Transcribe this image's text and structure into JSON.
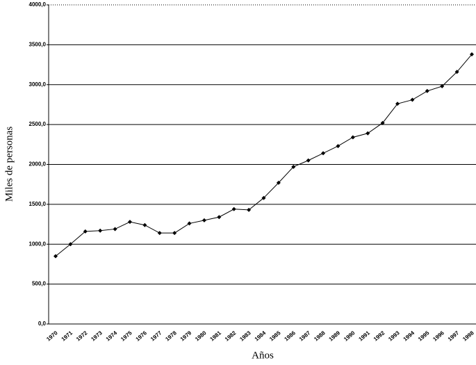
{
  "chart_data": {
    "type": "line",
    "x_label": "Años",
    "y_label": "Miles de personas",
    "categories": [
      "1970",
      "1971",
      "1972",
      "1973",
      "1974",
      "1975",
      "1976",
      "1977",
      "1978",
      "1979",
      "1980",
      "1981",
      "1982",
      "1983",
      "1984",
      "1985",
      "1986",
      "1987",
      "1988",
      "1989",
      "1990",
      "1991",
      "1992",
      "1993",
      "1994",
      "1995",
      "1996",
      "1997",
      "1998"
    ],
    "values": [
      850,
      1000,
      1160,
      1170,
      1190,
      1280,
      1240,
      1140,
      1140,
      1260,
      1300,
      1340,
      1440,
      1430,
      1580,
      1770,
      1970,
      2050,
      2140,
      2230,
      2340,
      2390,
      2520,
      2760,
      2810,
      2920,
      2980,
      3160,
      3380
    ],
    "color": "#000000",
    "ylim": [
      0,
      4000
    ],
    "yticks": [
      {
        "value": 0,
        "label": "0,0"
      },
      {
        "value": 500,
        "label": "500,0"
      },
      {
        "value": 1000,
        "label": "1000,0"
      },
      {
        "value": 1500,
        "label": "1500,0"
      },
      {
        "value": 2000,
        "label": "2000,0"
      },
      {
        "value": 2500,
        "label": "2500,0"
      },
      {
        "value": 3000,
        "label": "3000,0"
      },
      {
        "value": 3500,
        "label": "3500,0"
      },
      {
        "value": 4000,
        "label": "4000,0"
      }
    ],
    "grid": true
  }
}
